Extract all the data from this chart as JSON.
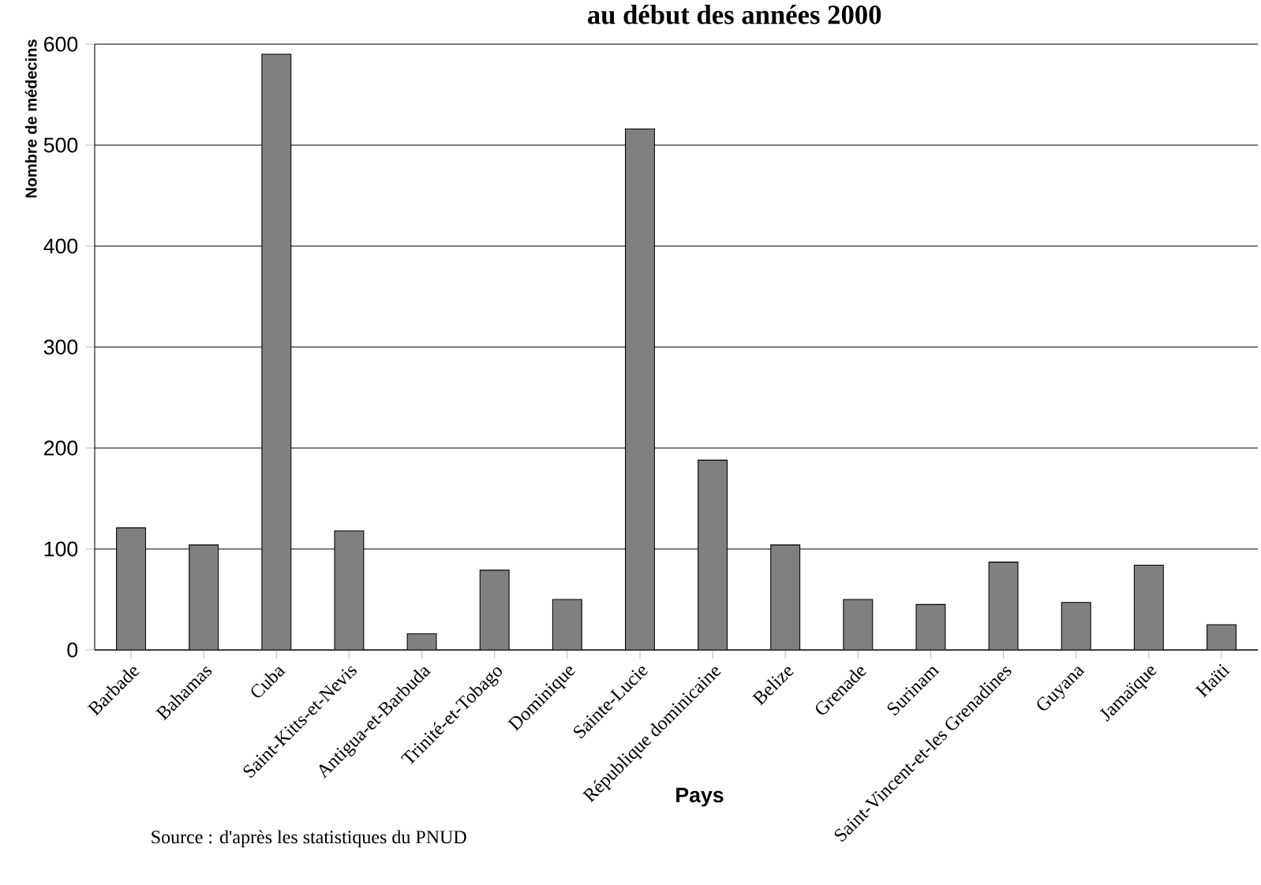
{
  "chart_data": {
    "type": "bar",
    "title": "au début des années 2000",
    "xlabel": "Pays",
    "ylabel": "Nombre de médecins",
    "categories": [
      "Barbade",
      "Bahamas",
      "Cuba",
      "Saint-Kitts-et-Nevis",
      "Antigua-et-Barbuda",
      "Trinité-et-Tobago",
      "Dominique",
      "Sainte-Lucie",
      "République dominicaine",
      "Belize",
      "Grenade",
      "Surinam",
      "Saint-Vincent-et-les Grenadines",
      "Guyana",
      "Jamaïque",
      "Haïti"
    ],
    "values": [
      121,
      104,
      590,
      118,
      16,
      79,
      50,
      516,
      188,
      104,
      50,
      45,
      87,
      47,
      84,
      25
    ],
    "color": "#808080",
    "ylim": [
      0,
      600
    ],
    "yticks": [
      0,
      100,
      200,
      300,
      400,
      500,
      600
    ],
    "grid": "y",
    "annotations": [
      "Source : d'après les statistiques du PNUD"
    ]
  }
}
